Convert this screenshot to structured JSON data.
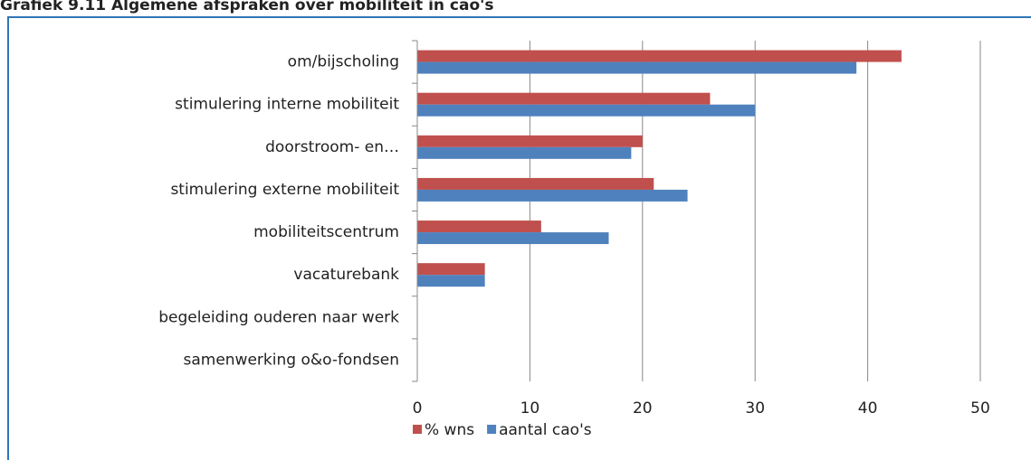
{
  "chart_data": {
    "type": "bar",
    "orientation": "horizontal",
    "title": "Grafiek 9.11      Algemene afspraken over mobiliteit in cao's",
    "categories": [
      "om/bijscholing",
      "stimulering interne mobiliteit",
      "doorstroom- en…",
      "stimulering externe mobiliteit",
      "mobiliteitscentrum",
      "vacaturebank",
      "begeleiding ouderen naar werk",
      "samenwerking o&o-fondsen"
    ],
    "series": [
      {
        "name": "% wns",
        "color": "#c0504d",
        "values": [
          43,
          26,
          20,
          21,
          11,
          6,
          0,
          0
        ]
      },
      {
        "name": "aantal cao's",
        "color": "#4f81bd",
        "values": [
          39,
          30,
          19,
          24,
          17,
          6,
          0,
          0
        ]
      }
    ],
    "xlim": [
      0,
      50
    ],
    "xticks": [
      0,
      10,
      20,
      30,
      40,
      50
    ],
    "grid": true,
    "legend": "bottom"
  }
}
